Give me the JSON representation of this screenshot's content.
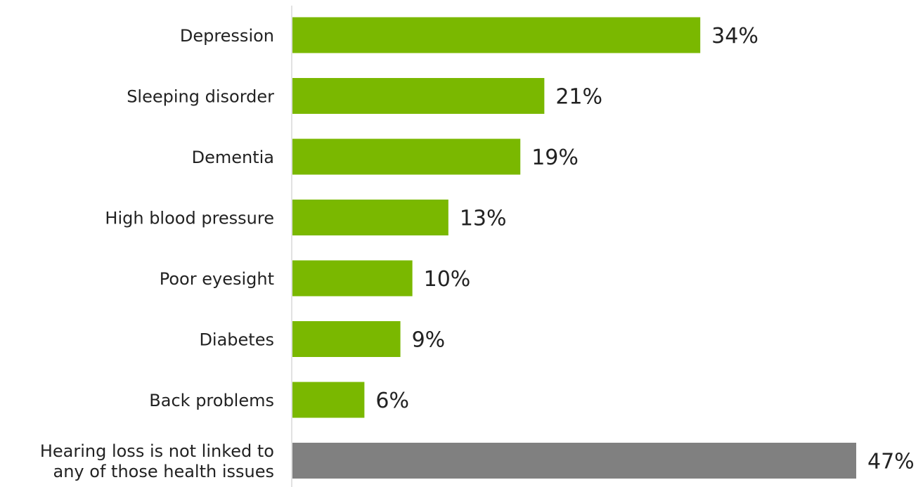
{
  "chart_data": {
    "type": "bar",
    "orientation": "horizontal",
    "categories": [
      [
        "Depression"
      ],
      [
        "Sleeping disorder"
      ],
      [
        "Dementia"
      ],
      [
        "High blood pressure"
      ],
      [
        "Poor eyesight"
      ],
      [
        "Diabetes"
      ],
      [
        "Back problems"
      ],
      [
        "Hearing loss is not linked to",
        "any of those health issues"
      ]
    ],
    "values": [
      34,
      21,
      19,
      13,
      10,
      9,
      6,
      47
    ],
    "value_labels": [
      "34%",
      "21%",
      "19%",
      "13%",
      "10%",
      "9%",
      "6%",
      "47%"
    ],
    "colors": [
      "#7ab800",
      "#7ab800",
      "#7ab800",
      "#7ab800",
      "#7ab800",
      "#7ab800",
      "#7ab800",
      "#808080"
    ],
    "xlim": [
      0,
      47
    ],
    "grid": false,
    "legend": "none"
  }
}
